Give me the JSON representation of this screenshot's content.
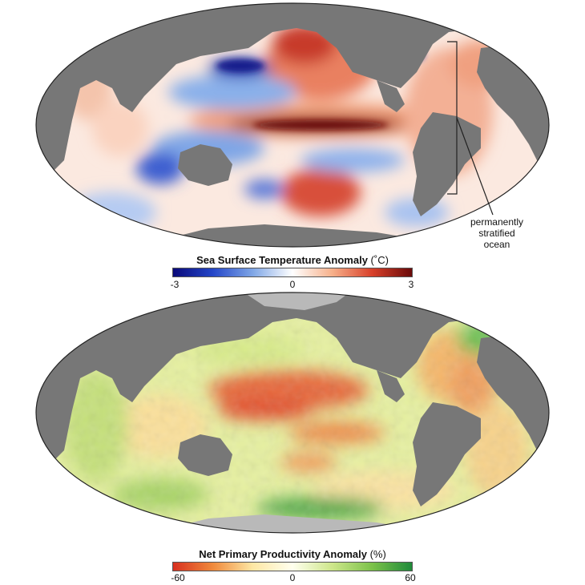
{
  "maps": [
    {
      "id": "sst",
      "legend": {
        "title": "Sea Surface Temperature Anomaly",
        "unit": "(˚C)",
        "ticks": [
          "-3",
          "0",
          "3"
        ],
        "range": [
          -3,
          3
        ],
        "colors": [
          "#0a0a7a",
          "#2446c8",
          "#7fa6e6",
          "#ffffff",
          "#f7b08a",
          "#d8402a",
          "#6a0a0a"
        ]
      },
      "annotation": {
        "lines": [
          "permanently",
          "stratified",
          "ocean"
        ]
      }
    },
    {
      "id": "npp",
      "legend": {
        "title": "Net Primary Productivity Anomaly",
        "unit": "(%)",
        "ticks": [
          "-60",
          "0",
          "60"
        ],
        "range": [
          -60,
          60
        ],
        "colors": [
          "#d7301f",
          "#f08a3c",
          "#fde7a4",
          "#ffffee",
          "#cde68a",
          "#7cc24a",
          "#1f8a3a"
        ]
      }
    }
  ],
  "colors": {
    "land": "#777777",
    "ice": "#b9b9b9",
    "bracket": "#222222"
  }
}
